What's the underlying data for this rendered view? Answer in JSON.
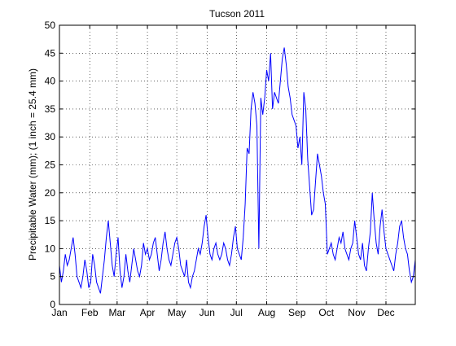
{
  "chart_data": {
    "type": "line",
    "title": "Tucson 2011",
    "xlabel": "",
    "ylabel": "Precipitable Water (mm); (1 inch = 25.4 mm)",
    "ylim": [
      0,
      50
    ],
    "xlim": [
      "2011-01-01",
      "2011-12-31"
    ],
    "yticks": [
      "0",
      "5",
      "10",
      "15",
      "20",
      "25",
      "30",
      "35",
      "40",
      "45",
      "50"
    ],
    "xticks": [
      "Jan",
      "Feb",
      "Mar",
      "Apr",
      "May",
      "Jun",
      "Jul",
      "Aug",
      "Sep",
      "Oct",
      "Nov",
      "Dec"
    ],
    "grid": "dotted",
    "line_color": "#0000ff",
    "x_units": "day of year 2011",
    "series": [
      {
        "x": [
          1,
          3,
          5,
          7,
          9,
          11,
          13,
          15,
          17,
          19,
          21,
          23,
          25,
          27,
          29,
          31,
          33,
          35,
          37,
          39,
          41,
          43,
          45,
          47,
          49,
          51,
          53,
          55,
          57,
          59,
          61,
          63,
          65,
          67,
          69,
          71,
          73,
          75,
          77,
          79,
          81,
          83,
          85,
          87,
          89,
          91,
          93,
          95,
          97,
          99,
          101,
          103,
          105,
          107,
          109,
          111,
          113,
          115,
          117,
          119,
          121,
          123,
          125,
          127,
          129,
          131,
          133,
          135,
          137,
          139,
          141,
          143,
          145,
          147,
          149,
          151,
          153,
          155,
          157,
          159,
          161,
          163,
          165,
          167,
          169,
          171,
          173,
          175,
          177,
          179,
          181,
          183,
          185,
          187,
          189,
          191,
          193,
          195,
          197,
          199,
          201,
          203,
          205,
          207,
          209,
          211,
          213,
          215,
          217,
          219,
          221,
          223,
          225,
          227,
          229,
          231,
          233,
          235,
          237,
          239,
          241,
          243,
          245,
          247,
          249,
          251,
          253,
          255,
          257,
          259,
          261,
          263,
          265,
          267,
          269,
          271,
          273,
          275,
          277,
          279,
          281,
          283,
          285,
          287,
          289,
          291,
          293,
          295,
          297,
          299,
          301,
          303,
          305,
          307,
          309,
          311,
          313,
          315,
          317,
          319,
          321,
          323,
          325,
          327,
          329,
          331,
          333,
          335,
          337,
          339,
          341,
          343,
          345,
          347,
          349,
          351,
          353,
          355,
          357,
          359,
          361,
          363,
          365
        ],
        "y": [
          7,
          4,
          6,
          9,
          7,
          8,
          10,
          12,
          9,
          5,
          4,
          3,
          5,
          8,
          6,
          3,
          4,
          9,
          7,
          4,
          3,
          2,
          5,
          8,
          12,
          15,
          11,
          7,
          5,
          9,
          12,
          6,
          3,
          5,
          9,
          6,
          4,
          7,
          10,
          8,
          6,
          5,
          7,
          11,
          9,
          10,
          8,
          9,
          11,
          12,
          9,
          6,
          8,
          11,
          13,
          10,
          8,
          7,
          9,
          11,
          12,
          10,
          7,
          6,
          5,
          8,
          4,
          3,
          5,
          6,
          8,
          10,
          9,
          11,
          14,
          16,
          12,
          9,
          8,
          10,
          11,
          9,
          8,
          9,
          11,
          10,
          8,
          7,
          9,
          12,
          14,
          10,
          9,
          8,
          12,
          18,
          28,
          27,
          35,
          38,
          36,
          32,
          10,
          37,
          34,
          37,
          42,
          40,
          45,
          35,
          38,
          37,
          36,
          40,
          44,
          46,
          43,
          39,
          37,
          34,
          33,
          32,
          28,
          30,
          25,
          38,
          35,
          26,
          21,
          16,
          17,
          22,
          27,
          25,
          23,
          20,
          18,
          9,
          10,
          11,
          9,
          8,
          10,
          12,
          11,
          13,
          10,
          9,
          8,
          10,
          11,
          15,
          12,
          9,
          8,
          11,
          7,
          6,
          10,
          13,
          20,
          15,
          11,
          9,
          14,
          17,
          13,
          10,
          9,
          8,
          7,
          6,
          9,
          11,
          14,
          15,
          12,
          10,
          9,
          6,
          4,
          5,
          8
        ]
      }
    ]
  }
}
